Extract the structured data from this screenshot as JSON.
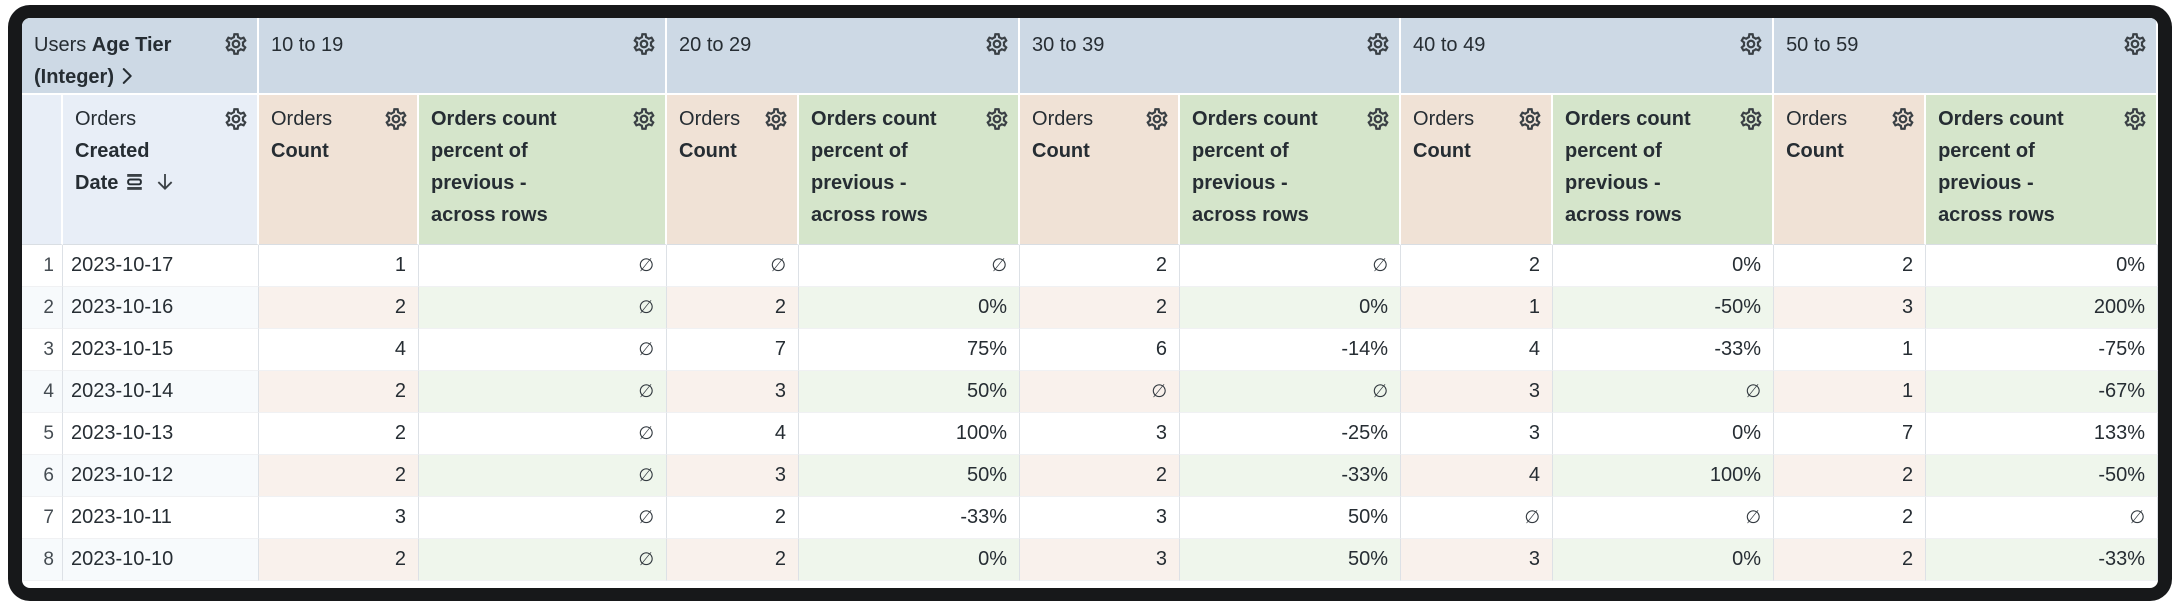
{
  "header": {
    "pivot_field": {
      "view": "Users",
      "field": "Age Tier (Integer)"
    },
    "row_field": {
      "view": "Orders",
      "field": "Created Date"
    },
    "pivot_values": [
      "10 to 19",
      "20 to 29",
      "30 to 39",
      "40 to 49",
      "50 to 59"
    ],
    "measures": {
      "count": {
        "view": "Orders",
        "field": "Count"
      },
      "calc": {
        "label": "Orders count percent of previous - across rows"
      }
    },
    "icons": {
      "gear": "gear-icon",
      "chevron": "chevron-right-icon",
      "date_group": "date-group-icon",
      "sort_desc": "arrow-down-icon"
    }
  },
  "null_symbol": "∅",
  "rows": [
    {
      "num": "1",
      "date": "2023-10-17",
      "values": [
        [
          "1",
          "∅"
        ],
        [
          "∅",
          "∅"
        ],
        [
          "2",
          "∅"
        ],
        [
          "2",
          "0%"
        ],
        [
          "2",
          "0%"
        ]
      ]
    },
    {
      "num": "2",
      "date": "2023-10-16",
      "values": [
        [
          "2",
          "∅"
        ],
        [
          "2",
          "0%"
        ],
        [
          "2",
          "0%"
        ],
        [
          "1",
          "-50%"
        ],
        [
          "3",
          "200%"
        ]
      ]
    },
    {
      "num": "3",
      "date": "2023-10-15",
      "values": [
        [
          "4",
          "∅"
        ],
        [
          "7",
          "75%"
        ],
        [
          "6",
          "-14%"
        ],
        [
          "4",
          "-33%"
        ],
        [
          "1",
          "-75%"
        ]
      ]
    },
    {
      "num": "4",
      "date": "2023-10-14",
      "values": [
        [
          "2",
          "∅"
        ],
        [
          "3",
          "50%"
        ],
        [
          "∅",
          "∅"
        ],
        [
          "3",
          "∅"
        ],
        [
          "1",
          "-67%"
        ]
      ]
    },
    {
      "num": "5",
      "date": "2023-10-13",
      "values": [
        [
          "2",
          "∅"
        ],
        [
          "4",
          "100%"
        ],
        [
          "3",
          "-25%"
        ],
        [
          "3",
          "0%"
        ],
        [
          "7",
          "133%"
        ]
      ]
    },
    {
      "num": "6",
      "date": "2023-10-12",
      "values": [
        [
          "2",
          "∅"
        ],
        [
          "3",
          "50%"
        ],
        [
          "2",
          "-33%"
        ],
        [
          "4",
          "100%"
        ],
        [
          "2",
          "-50%"
        ]
      ]
    },
    {
      "num": "7",
      "date": "2023-10-11",
      "values": [
        [
          "3",
          "∅"
        ],
        [
          "2",
          "-33%"
        ],
        [
          "3",
          "50%"
        ],
        [
          "∅",
          "∅"
        ],
        [
          "2",
          "∅"
        ]
      ]
    },
    {
      "num": "8",
      "date": "2023-10-10",
      "values": [
        [
          "2",
          "∅"
        ],
        [
          "2",
          "0%"
        ],
        [
          "3",
          "50%"
        ],
        [
          "3",
          "0%"
        ],
        [
          "2",
          "-33%"
        ]
      ]
    }
  ],
  "colors": {
    "pivot_header_bg": "#cdd9e5",
    "dim_header_bg": "#e8eef7",
    "count_header_bg": "#f0e2d6",
    "calc_header_bg": "#d5e5cb",
    "row_even_dim": "#f7fafc",
    "row_even_count": "#f9f1ec",
    "row_even_calc": "#eff6ec",
    "text": "#262d33",
    "frame": "#17181a"
  }
}
